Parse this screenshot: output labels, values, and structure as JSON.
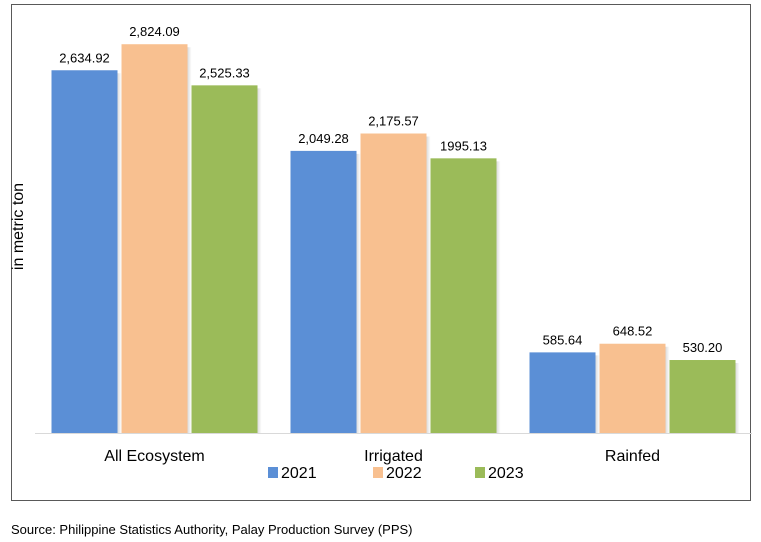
{
  "source_note": "Source: Philippine Statistics Authority, Palay Production Survey (PPS)",
  "colors": {
    "series_2021": "#5B8FD6",
    "series_2022": "#F8C090",
    "series_2023": "#9BBB59"
  },
  "chart_data": {
    "type": "bar",
    "title": "",
    "xlabel": "",
    "ylabel": "in metric ton",
    "categories": [
      "All Ecosystem",
      "Irrigated",
      "Rainfed"
    ],
    "series": [
      {
        "name": "2021",
        "values": [
          2634.92,
          2049.28,
          585.64
        ],
        "labels": [
          "2,634.92",
          "2,049.28",
          "585.64"
        ],
        "color": "#5B8FD6"
      },
      {
        "name": "2022",
        "values": [
          2824.09,
          2175.57,
          648.52
        ],
        "labels": [
          "2,824.09",
          "2,175.57",
          "648.52"
        ],
        "color": "#F8C090"
      },
      {
        "name": "2023",
        "values": [
          2525.33,
          1995.13,
          530.2
        ],
        "labels": [
          "2,525.33",
          "1995.13",
          "530.20"
        ],
        "color": "#9BBB59"
      }
    ],
    "ylim": [
      0,
      3000
    ],
    "grid": false,
    "legend": "bottom",
    "y_axis_visible": false
  }
}
